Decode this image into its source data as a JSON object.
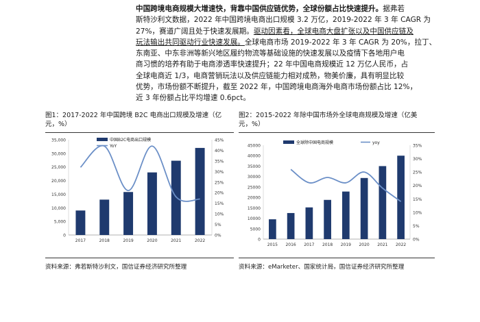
{
  "paragraph": {
    "line1_bold": "中国跨境电商规模大增速快，背靠中国供应链优势，全球份额占比快速提升。",
    "line1_rest": "据弗若",
    "line2": "斯特沙利文数据，2022 年中国跨境电商出口规模 3.2 万亿，2019-2022 年 3 年 CAGR 为",
    "line3_pre": "27%，赛道广阔且处于快速发展期。",
    "line3_u": "驱动因素看，全球电商大盘扩张以及中国供应链及",
    "line4_u": "玩法输出共同驱动行业快速发展。",
    "line4_rest": "全球电商市场 2019-2022 年 3 年 CAGR 为 20%，拉丁、",
    "line5": "东南亚、中东非洲等新兴地区履约物流等基础设施的快速发展以及疫情下各地用户电",
    "line6": "商习惯的培养有助于电商渗透率快速提升；22 年中国电商规模近 12 万亿人民币，占",
    "line7": "全球电商近 1/3，电商营销玩法以及供应链能力相对成熟，物美价廉，具有明显比较",
    "line8": "优势，市场份额不断提升，截至 2022 年，中国跨境电商海外电商市场份额占比 12%，",
    "line9": "近 3 年份额占比平均增速 0.6pct。"
  },
  "figure1": {
    "title_line1": "图1：2017-2022 年中国跨境 B2C 电商出口规模及增速（亿",
    "title_line2": "元，%）",
    "source": "资料来源：弗若斯特沙利文，国信证券经济研究所整理"
  },
  "figure2": {
    "title_line1": "图2：2015-2022 年除中国市场外全球电商规模及增速（亿美",
    "title_line2": "元，%）",
    "source": "资料来源：eMarketer、国家统计局，国信证券经济研究所整理"
  },
  "chart_data": [
    {
      "type": "bar",
      "categories": [
        "2017",
        "2018",
        "2019",
        "2020",
        "2021",
        "2022"
      ],
      "series": [
        {
          "name": "中国B2C电商出口规模",
          "axis": "left",
          "values": [
            9000,
            13000,
            15800,
            23000,
            27300,
            32000
          ]
        },
        {
          "name": "YoY",
          "type": "line",
          "axis": "right",
          "values": [
            32,
            42,
            21,
            42,
            18,
            17
          ]
        }
      ],
      "ylim": [
        0,
        35000
      ],
      "y2lim": [
        0,
        45
      ],
      "yticks": [
        "0",
        "5,000",
        "10,000",
        "15,000",
        "20,000",
        "25,000",
        "30,000",
        "35,000"
      ],
      "y2ticks": [
        "0%",
        "5%",
        "10%",
        "15%",
        "20%",
        "25%",
        "30%",
        "35%",
        "40%",
        "45%"
      ],
      "color_bar": "#1f3a6e",
      "color_line": "#6b8fc7",
      "legend": "top-left"
    },
    {
      "type": "bar",
      "categories": [
        "2015",
        "2016",
        "2017",
        "2018",
        "2019",
        "2020",
        "2021",
        "2022"
      ],
      "series": [
        {
          "name": "全球除中国电商规模",
          "axis": "left",
          "values": [
            9500,
            12500,
            15200,
            18800,
            22800,
            29300,
            35000,
            40000
          ]
        },
        {
          "name": "yoy",
          "type": "line",
          "axis": "right",
          "values": [
            null,
            26,
            21,
            23,
            21,
            25,
            19,
            14
          ]
        }
      ],
      "ylim": [
        0,
        45000
      ],
      "y2lim": [
        0,
        35
      ],
      "yticks": [
        "0",
        "5000",
        "10000",
        "15000",
        "20000",
        "25000",
        "30000",
        "35000",
        "40000",
        "45000"
      ],
      "y2ticks": [
        "0%",
        "5%",
        "10%",
        "15%",
        "20%",
        "25%",
        "30%",
        "35%"
      ],
      "color_bar": "#1f3a6e",
      "color_line": "#6b8fc7",
      "legend": "top-left"
    }
  ]
}
